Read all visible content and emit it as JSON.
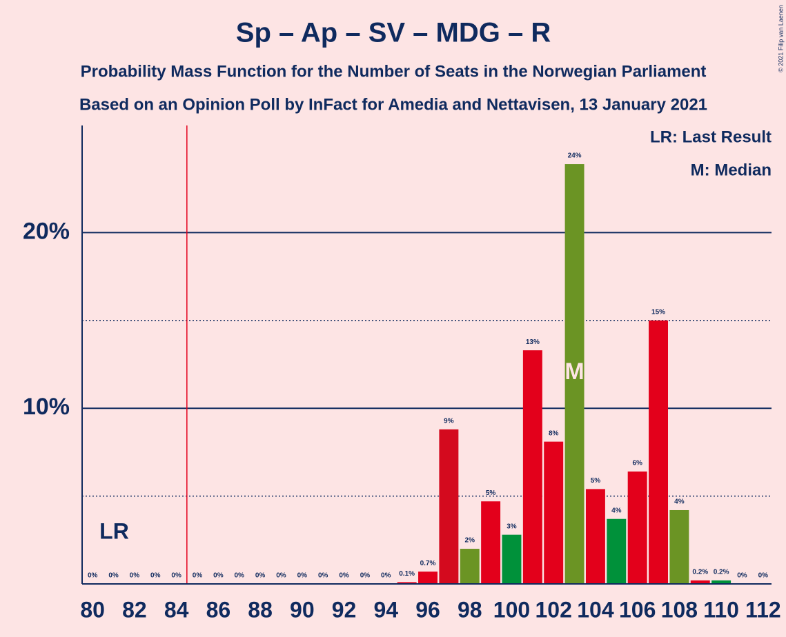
{
  "chart_data": {
    "type": "bar",
    "title": "Sp – Ap – SV – MDG – R",
    "subtitle": "Probability Mass Function for the Number of Seats in the Norwegian Parliament",
    "subtitle2": "Based on an Opinion Poll by InFact for Amedia and Nettavisen, 13 January 2021",
    "copyright": "© 2021 Filip van Laenen",
    "legend": [
      "LR: Last Result",
      "M: Median"
    ],
    "x": [
      80,
      81,
      82,
      83,
      84,
      85,
      86,
      87,
      88,
      89,
      90,
      91,
      92,
      93,
      94,
      95,
      96,
      97,
      98,
      99,
      100,
      101,
      102,
      103,
      104,
      105,
      106,
      107,
      108,
      109,
      110,
      111,
      112
    ],
    "values": [
      0,
      0,
      0,
      0,
      0,
      0,
      0,
      0,
      0,
      0,
      0,
      0,
      0,
      0,
      0,
      0.1,
      0.7,
      8.8,
      2.0,
      4.7,
      2.8,
      13.3,
      8.1,
      23.9,
      5.4,
      3.7,
      6.4,
      15.0,
      4.2,
      0.2,
      0.2,
      0,
      0
    ],
    "value_labels": [
      "0%",
      "0%",
      "0%",
      "0%",
      "0%",
      "0%",
      "0%",
      "0%",
      "0%",
      "0%",
      "0%",
      "0%",
      "0%",
      "0%",
      "0%",
      "0.1%",
      "0.7%",
      "9%",
      "2%",
      "5%",
      "3%",
      "13%",
      "8%",
      "24%",
      "5%",
      "4%",
      "6%",
      "15%",
      "4%",
      "0.2%",
      "0.2%",
      "0%",
      "0%"
    ],
    "colors": [
      "#e3001b",
      "#e3001b",
      "#e3001b",
      "#e3001b",
      "#e3001b",
      "#e3001b",
      "#e3001b",
      "#e3001b",
      "#e3001b",
      "#e3001b",
      "#e3001b",
      "#e3001b",
      "#e3001b",
      "#e3001b",
      "#e3001b",
      "#e3001b",
      "#e3001b",
      "#d40a1e",
      "#6b9424",
      "#e3001b",
      "#00913a",
      "#e3001b",
      "#e3001b",
      "#6b9424",
      "#e3001b",
      "#00913a",
      "#e3001b",
      "#e3001b",
      "#6b9424",
      "#e3001b",
      "#00913a",
      "#e3001b",
      "#e3001b"
    ],
    "xlim": [
      79.5,
      112.4
    ],
    "xticks": [
      80,
      82,
      84,
      86,
      88,
      90,
      92,
      94,
      96,
      98,
      100,
      102,
      104,
      106,
      108,
      110,
      112
    ],
    "ylim": [
      0,
      26.1
    ],
    "yticks": [
      {
        "value": 10,
        "label": "10%"
      },
      {
        "value": 20,
        "label": "20%"
      }
    ],
    "minor_yticks": [
      5,
      15
    ],
    "last_result": {
      "label": "LR",
      "x": 84.5
    },
    "median": {
      "label": "M",
      "x": 103
    }
  }
}
